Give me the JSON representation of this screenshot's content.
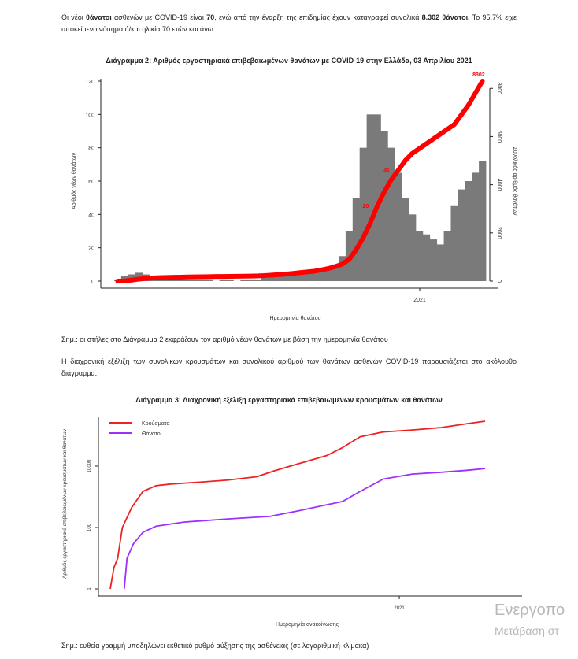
{
  "intro": {
    "line_prefix": "Οι νέοι ",
    "bold1": "θάνατοι",
    "mid1": " ασθενών με COVID-19 είναι ",
    "bold2": "70",
    "mid2": ", ενώ από την έναρξη της επιδημίας έχουν καταγραφεί συνολικά ",
    "bold3": "8.302 θάνατοι.",
    "suffix": "  Το 95.7% είχε υποκείμενο νόσημα ή/και ηλικία 70 ετών και άνω."
  },
  "note2": "Σημ.: οι στήλες στο Διάγραμμα 2 εκφράζουν τον αριθμό νέων θανάτων με βάση την ημερομηνία θανάτου",
  "para2": "Η διαχρονική εξέλιξη των συνολικών κρουσμάτων και συνολικού αριθμού των θανάτων ασθενών COVID-19 παρουσιάζεται στο ακόλουθο διάγραμμα.",
  "note3": "Σημ.: ευθεία γραμμή υποδηλώνει εκθετικό ρυθμό αύξησης της ασθένειας (σε λογαριθμική κλίμακα)",
  "watermark": {
    "line1": "Ενεργοπο",
    "line2": "Μετάβαση στ"
  },
  "chart_data": [
    {
      "type": "bar",
      "title": "Διάγραμμα 2: Αριθμός εργαστηριακά επιβεβαιωμένων θανάτων με COVID-19 στην Ελλάδα, 03 Απριλίου 2021",
      "xlabel": "Ημερομηνία θανάτου",
      "ylabel": "Αριθμός νέων θανάτων",
      "y2label": "Συνολικός αριθμός θανάτων",
      "xtick_labels": [
        "2021"
      ],
      "ylim": [
        0,
        120
      ],
      "yticks": [
        0,
        20,
        40,
        60,
        80,
        100,
        120
      ],
      "y2lim": [
        0,
        8302
      ],
      "y2ticks": [
        "0",
        "2000",
        "4000",
        "6000",
        "8000"
      ],
      "bar_color": "#7a7a7a",
      "line_color": "#ff0000",
      "week_start": "2020-03-02",
      "weekly_new_deaths": [
        1,
        3,
        4,
        5,
        4,
        3,
        3,
        2,
        2,
        1,
        1,
        1,
        1,
        1,
        0,
        1,
        1,
        0,
        1,
        1,
        1,
        2,
        3,
        4,
        4,
        4,
        5,
        5,
        6,
        6,
        8,
        10,
        15,
        30,
        50,
        80,
        100,
        100,
        90,
        80,
        65,
        50,
        40,
        30,
        28,
        25,
        22,
        30,
        45,
        55,
        60,
        65,
        72
      ],
      "cumulative_deaths": [
        0,
        10,
        40,
        80,
        110,
        130,
        145,
        150,
        160,
        165,
        170,
        175,
        180,
        185,
        190,
        193,
        195,
        200,
        205,
        210,
        215,
        230,
        250,
        270,
        290,
        320,
        350,
        380,
        410,
        460,
        520,
        600,
        700,
        900,
        1300,
        1800,
        2400,
        3100,
        3700,
        4200,
        4600,
        5000,
        5300,
        5500,
        5700,
        5900,
        6100,
        6300,
        6500,
        6900,
        7300,
        7800,
        8302
      ],
      "annotations": [
        {
          "text": "20",
          "week": 37
        },
        {
          "text": "41",
          "week": 40
        },
        {
          "text": "8302",
          "week": 52
        }
      ]
    },
    {
      "type": "line",
      "title": "Διάγραμμα 3: Διαχρονική εξέλιξη εργαστηριακά επιβεβαιωμένων κρουσμάτων και θανάτων",
      "xlabel": "Ημερομηνία ανακοίνωσης",
      "ylabel": "Αριθμός εργαστηριακά επιβεβαιωμένων κρουσμάτων και θανάτων",
      "yscale": "log",
      "yticks": [
        "1",
        "100",
        "10000"
      ],
      "xtick_labels": [
        "2021"
      ],
      "legend": "top-left",
      "series": [
        {
          "name": "Κρούσματα",
          "color": "#ee2222",
          "points": [
            [
              "2020-02-26",
              1
            ],
            [
              "2020-03-01",
              5
            ],
            [
              "2020-03-05",
              10
            ],
            [
              "2020-03-10",
              100
            ],
            [
              "2020-03-20",
              450
            ],
            [
              "2020-04-01",
              1500
            ],
            [
              "2020-04-15",
              2300
            ],
            [
              "2020-05-01",
              2600
            ],
            [
              "2020-06-01",
              3000
            ],
            [
              "2020-07-01",
              3500
            ],
            [
              "2020-08-01",
              4500
            ],
            [
              "2020-08-20",
              7000
            ],
            [
              "2020-09-15",
              12000
            ],
            [
              "2020-10-15",
              22000
            ],
            [
              "2020-11-01",
              40000
            ],
            [
              "2020-11-20",
              90000
            ],
            [
              "2020-12-15",
              130000
            ],
            [
              "2021-01-15",
              150000
            ],
            [
              "2021-02-15",
              180000
            ],
            [
              "2021-03-15",
              240000
            ],
            [
              "2021-04-03",
              290000
            ]
          ]
        },
        {
          "name": "Θάνατοι",
          "color": "#9b30ff",
          "points": [
            [
              "2020-03-12",
              1
            ],
            [
              "2020-03-15",
              10
            ],
            [
              "2020-03-22",
              30
            ],
            [
              "2020-04-01",
              70
            ],
            [
              "2020-04-15",
              110
            ],
            [
              "2020-05-15",
              150
            ],
            [
              "2020-07-01",
              190
            ],
            [
              "2020-08-15",
              230
            ],
            [
              "2020-09-15",
              350
            ],
            [
              "2020-10-15",
              550
            ],
            [
              "2020-11-01",
              700
            ],
            [
              "2020-11-20",
              1500
            ],
            [
              "2020-12-15",
              3800
            ],
            [
              "2021-01-15",
              5500
            ],
            [
              "2021-02-15",
              6300
            ],
            [
              "2021-03-15",
              7300
            ],
            [
              "2021-04-03",
              8302
            ]
          ]
        }
      ]
    }
  ]
}
